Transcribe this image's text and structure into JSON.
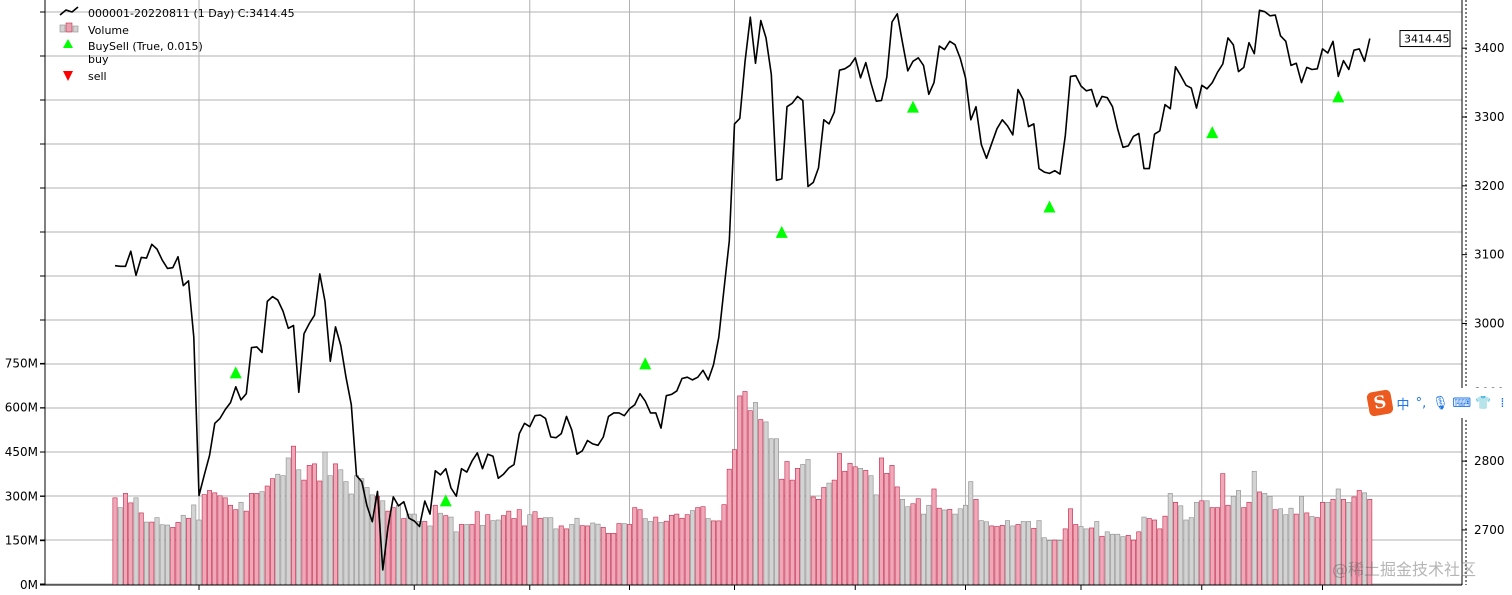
{
  "chart_data": {
    "type": "line",
    "title": "",
    "legend": {
      "placement": "top-left",
      "entries": [
        {
          "label": "000001-20220811 (1 Day) C:3414.45",
          "kind": "line",
          "color": "#000000"
        },
        {
          "label": "Volume",
          "kind": "bar",
          "color": "#e8a3b0"
        },
        {
          "label": "BuySell (True, 0.015)",
          "kind": "header",
          "color": ""
        },
        {
          "label": "buy",
          "kind": "marker-up",
          "color": "#00ff00"
        },
        {
          "label": "sell",
          "kind": "marker-down",
          "color": "#ff0000"
        }
      ]
    },
    "price_axis": {
      "side": "right",
      "ticks": [
        2700,
        2800,
        2900,
        3000,
        3100,
        3200,
        3300,
        3400
      ],
      "tick_labels": [
        "2700",
        "2800",
        "2900",
        "3000",
        "3100",
        "3200",
        "3300",
        "3400"
      ],
      "range": [
        2620,
        3470
      ]
    },
    "volume_axis": {
      "side": "left",
      "ticks": [
        0,
        150,
        300,
        450,
        600,
        750
      ],
      "tick_labels": [
        "0M",
        "150M",
        "300M",
        "450M",
        "600M",
        "750M"
      ],
      "range": [
        0,
        1980
      ]
    },
    "last_price_label": "3414.45",
    "grid": true,
    "series": [
      {
        "name": "000001-20220811 (1 Day) C:3414.45",
        "kind": "close",
        "values": [
          3084,
          3083,
          3083,
          3105,
          3070,
          3096,
          3095,
          3115,
          3108,
          3092,
          3080,
          3081,
          3097,
          3055,
          3062,
          2980,
          2750,
          2780,
          2808,
          2855,
          2862,
          2875,
          2885,
          2908,
          2889,
          2898,
          2965,
          2966,
          2958,
          3032,
          3039,
          3034,
          3018,
          2993,
          2997,
          2900,
          2985,
          3000,
          3012,
          3072,
          3032,
          2945,
          2995,
          2968,
          2922,
          2882,
          2779,
          2770,
          2735,
          2712,
          2756,
          2642,
          2704,
          2748,
          2735,
          2741,
          2717,
          2713,
          2705,
          2742,
          2723,
          2786,
          2780,
          2789,
          2761,
          2749,
          2789,
          2784,
          2800,
          2812,
          2789,
          2810,
          2807,
          2775,
          2781,
          2790,
          2795,
          2840,
          2855,
          2850,
          2866,
          2867,
          2862,
          2835,
          2834,
          2840,
          2865,
          2845,
          2810,
          2815,
          2830,
          2825,
          2823,
          2835,
          2865,
          2870,
          2870,
          2866,
          2876,
          2882,
          2898,
          2887,
          2870,
          2870,
          2848,
          2895,
          2897,
          2902,
          2920,
          2922,
          2918,
          2922,
          2932,
          2918,
          2940,
          2980,
          3050,
          3120,
          3290,
          3298,
          3380,
          3445,
          3378,
          3440,
          3415,
          3362,
          3208,
          3210,
          3315,
          3320,
          3330,
          3324,
          3199,
          3205,
          3226,
          3296,
          3290,
          3307,
          3368,
          3370,
          3375,
          3386,
          3357,
          3379,
          3349,
          3323,
          3324,
          3358,
          3438,
          3450,
          3408,
          3367,
          3381,
          3386,
          3375,
          3333,
          3350,
          3403,
          3398,
          3410,
          3405,
          3385,
          3357,
          3296,
          3315,
          3260,
          3240,
          3262,
          3283,
          3296,
          3287,
          3274,
          3340,
          3325,
          3286,
          3290,
          3225,
          3220,
          3218,
          3222,
          3217,
          3273,
          3359,
          3360,
          3345,
          3338,
          3340,
          3315,
          3330,
          3328,
          3315,
          3282,
          3256,
          3258,
          3272,
          3276,
          3225,
          3225,
          3275,
          3280,
          3318,
          3312,
          3373,
          3360,
          3346,
          3342,
          3313,
          3346,
          3341,
          3350,
          3365,
          3377,
          3415,
          3405,
          3366,
          3372,
          3408,
          3392,
          3455,
          3453,
          3447,
          3448,
          3418,
          3410,
          3375,
          3378,
          3350,
          3372,
          3369,
          3370,
          3399,
          3393,
          3410,
          3359,
          3382,
          3369,
          3397,
          3399,
          3381,
          3414
        ]
      },
      {
        "name": "Volume",
        "kind": "volume",
        "values": [
          295,
          262,
          310,
          278,
          295,
          244,
          213,
          213,
          228,
          204,
          203,
          195,
          212,
          236,
          226,
          271,
          220,
          306,
          320,
          312,
          302,
          295,
          270,
          255,
          280,
          250,
          310,
          310,
          316,
          335,
          360,
          375,
          370,
          430,
          470,
          390,
          355,
          405,
          410,
          352,
          450,
          370,
          410,
          390,
          350,
          308,
          370,
          360,
          330,
          305,
          300,
          285,
          250,
          262,
          270,
          225,
          240,
          240,
          215,
          215,
          200,
          270,
          243,
          235,
          230,
          180,
          205,
          205,
          205,
          248,
          202,
          238,
          218,
          220,
          235,
          250,
          225,
          255,
          200,
          238,
          248,
          226,
          228,
          228,
          190,
          200,
          190,
          205,
          226,
          201,
          200,
          210,
          206,
          195,
          175,
          175,
          208,
          208,
          205,
          262,
          255,
          225,
          215,
          230,
          212,
          216,
          236,
          240,
          226,
          238,
          252,
          262,
          265,
          225,
          217,
          217,
          272,
          392,
          458,
          640,
          655,
          590,
          618,
          560,
          552,
          495,
          495,
          358,
          418,
          355,
          395,
          408,
          425,
          298,
          290,
          330,
          345,
          355,
          445,
          385,
          412,
          400,
          395,
          388,
          370,
          305,
          430,
          378,
          405,
          332,
          290,
          265,
          275,
          292,
          240,
          270,
          325,
          260,
          254,
          256,
          240,
          258,
          270,
          350,
          290,
          218,
          214,
          200,
          198,
          202,
          218,
          200,
          205,
          215,
          215,
          192,
          218,
          160,
          150,
          152,
          150,
          190,
          258,
          205,
          198,
          190,
          193,
          215,
          165,
          180,
          172,
          172,
          164,
          168,
          152,
          180,
          230,
          225,
          220,
          190,
          233,
          310,
          280,
          268,
          220,
          228,
          280,
          285,
          285,
          262,
          262,
          377,
          270,
          300,
          320,
          262,
          280,
          385,
          315,
          310,
          300,
          255,
          258,
          238,
          260,
          240,
          300,
          244,
          232,
          228,
          280,
          280,
          290,
          325,
          290,
          280,
          298,
          320,
          312,
          290
        ],
        "colors": "red when close >= previous close, grey otherwise"
      }
    ],
    "markers": [
      {
        "type": "buy",
        "x_index": 23,
        "price": 2929
      },
      {
        "type": "buy",
        "x_index": 63,
        "price": 2743
      },
      {
        "type": "buy",
        "x_index": 101,
        "price": 2942
      },
      {
        "type": "buy",
        "x_index": 127,
        "price": 3133
      },
      {
        "type": "buy",
        "x_index": 152,
        "price": 3315
      },
      {
        "type": "buy",
        "x_index": 178,
        "price": 3170
      },
      {
        "type": "buy",
        "x_index": 209,
        "price": 3278
      },
      {
        "type": "buy",
        "x_index": 233,
        "price": 3330
      }
    ]
  },
  "ime_toolbar": {
    "logo": "S",
    "items": [
      {
        "name": "zh-mode",
        "label": "中"
      },
      {
        "name": "punctuation",
        "label": "°,"
      },
      {
        "name": "microphone-icon",
        "label": "🎙"
      },
      {
        "name": "keyboard-icon",
        "label": "⌨"
      },
      {
        "name": "skin-icon",
        "label": "👕"
      },
      {
        "name": "grid-icon",
        "label": "⁞"
      }
    ]
  },
  "watermark": "@稀土掘金技术社区"
}
